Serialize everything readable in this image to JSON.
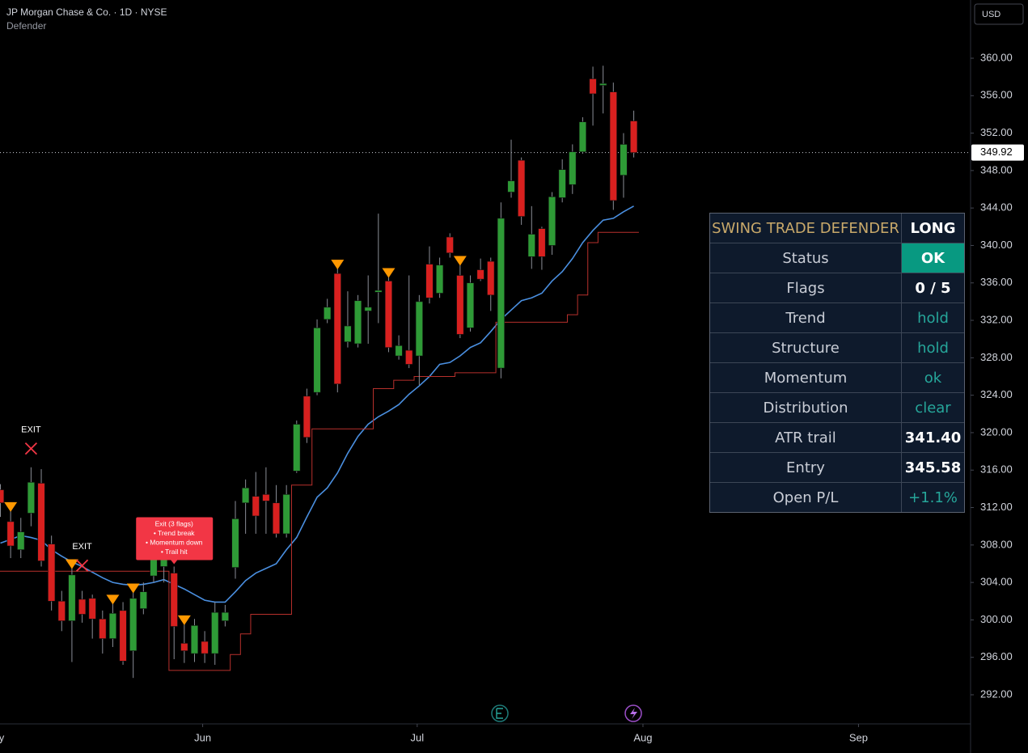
{
  "chart_data": {
    "type": "candlestick",
    "title": "JP Morgan Chase & Co. · 1D · NYSE",
    "subtitle": "Defender",
    "currency": "USD",
    "open": [
      313.9,
      310.5,
      307.5,
      311.4,
      314.6,
      308.1,
      302.0,
      299.9,
      302.2,
      302.3,
      300.1,
      298.0,
      301.0,
      296.7,
      301.2,
      304.7,
      305.7,
      305.0,
      297.5,
      296.4,
      297.7,
      296.4,
      299.9,
      305.6,
      312.5,
      313.2,
      313.4,
      312.5,
      309.2,
      315.9,
      323.9,
      324.3,
      332.1,
      337.0,
      329.7,
      329.5,
      333.0,
      335.0,
      336.2,
      328.2,
      328.8,
      328.2,
      338.0,
      334.9,
      340.9,
      336.8,
      331.2,
      337.4,
      338.3,
      326.9,
      345.7,
      349.1,
      338.8,
      341.8,
      340.0,
      345.1,
      346.5,
      350.0,
      357.8,
      357.1,
      356.4,
      347.5,
      353.3
    ],
    "high": [
      314.5,
      311.8,
      310.9,
      316.3,
      316.1,
      309.0,
      303.1,
      305.7,
      303.1,
      302.7,
      301.0,
      301.9,
      301.9,
      303.1,
      304.0,
      307.5,
      308.5,
      305.7,
      299.7,
      300.1,
      298.8,
      301.9,
      301.6,
      312.7,
      315.0,
      315.8,
      316.3,
      314.4,
      314.4,
      321.3,
      324.7,
      332.1,
      334.3,
      337.7,
      335.1,
      334.7,
      336.8,
      343.4,
      336.8,
      330.4,
      336.8,
      334.7,
      339.9,
      338.7,
      341.3,
      338.1,
      336.8,
      338.6,
      338.7,
      344.6,
      351.3,
      349.4,
      344.2,
      342.0,
      345.7,
      349.2,
      350.8,
      353.7,
      359.1,
      359.2,
      357.4,
      352.0,
      354.4
    ],
    "low": [
      311.0,
      306.6,
      306.6,
      310.0,
      305.7,
      301.0,
      298.8,
      295.5,
      299.7,
      298.0,
      296.4,
      297.1,
      295.2,
      293.8,
      300.6,
      304.0,
      304.0,
      295.8,
      295.4,
      295.5,
      295.4,
      295.2,
      299.3,
      304.4,
      309.2,
      309.2,
      309.2,
      308.8,
      308.8,
      315.7,
      318.9,
      324.0,
      331.7,
      324.3,
      329.1,
      329.1,
      329.5,
      331.7,
      328.6,
      327.8,
      326.9,
      325.1,
      333.8,
      334.4,
      338.7,
      330.1,
      330.8,
      336.2,
      333.0,
      325.8,
      345.1,
      342.2,
      337.5,
      337.4,
      339.0,
      344.6,
      345.5,
      349.8,
      352.8,
      354.1,
      343.8,
      345.1,
      349.4
    ],
    "close": [
      312.5,
      307.9,
      309.4,
      314.7,
      306.3,
      302.0,
      299.9,
      304.8,
      300.6,
      300.1,
      298.0,
      300.7,
      295.6,
      302.3,
      303.0,
      306.6,
      307.5,
      299.3,
      296.7,
      299.4,
      296.4,
      300.8,
      300.8,
      310.8,
      314.1,
      311.1,
      312.7,
      309.2,
      313.4,
      320.9,
      319.5,
      331.2,
      333.4,
      325.2,
      331.4,
      334.1,
      333.4,
      335.2,
      329.1,
      329.3,
      327.3,
      334.0,
      334.4,
      337.9,
      339.2,
      330.5,
      336.0,
      336.4,
      334.7,
      342.9,
      346.9,
      343.1,
      341.2,
      338.8,
      345.2,
      348.1,
      350.0,
      353.2,
      356.2,
      357.3,
      344.8,
      350.8,
      349.92
    ],
    "up_color": "#2e9a36",
    "down_color": "#d8201f",
    "overlays": [
      {
        "color": "#4a8fe0",
        "step": false,
        "values": [
          308.2,
          308.6,
          309.0,
          308.8,
          308.5,
          307.5,
          306.8,
          306.2,
          305.7,
          305.1,
          304.5,
          304.0,
          303.8,
          303.7,
          303.8,
          304.0,
          304.3,
          303.8,
          303.3,
          302.7,
          302.1,
          301.9,
          301.9,
          303.0,
          304.2,
          305.0,
          305.5,
          306.0,
          307.5,
          308.8,
          311.0,
          313.1,
          314.1,
          315.7,
          317.8,
          319.6,
          320.9,
          321.7,
          322.3,
          323.0,
          324.1,
          325.0,
          326.0,
          327.3,
          327.5,
          328.2,
          329.1,
          329.6,
          330.8,
          332.1,
          333.1,
          334.1,
          334.4,
          334.9,
          336.2,
          337.2,
          338.6,
          340.3,
          341.6,
          342.7,
          342.9,
          343.6,
          344.2
        ]
      },
      {
        "color": "#b7302c",
        "step": true,
        "values": [
          305.2,
          305.2,
          305.2,
          305.2,
          305.2,
          305.2,
          305.2,
          305.2,
          305.2,
          305.2,
          305.2,
          305.2,
          305.2,
          305.2,
          305.2,
          305.2,
          305.2,
          294.6,
          294.6,
          294.6,
          294.6,
          294.6,
          294.6,
          296.3,
          298.5,
          300.6,
          300.6,
          300.6,
          300.6,
          314.4,
          314.4,
          320.4,
          320.4,
          320.4,
          320.4,
          320.4,
          320.4,
          324.7,
          324.7,
          325.6,
          325.6,
          326.0,
          326.0,
          326.0,
          326.0,
          326.4,
          326.4,
          326.4,
          326.4,
          331.8,
          331.8,
          331.8,
          331.8,
          331.8,
          331.8,
          331.8,
          332.6,
          334.7,
          340.3,
          341.4,
          341.4,
          341.4,
          341.4
        ]
      }
    ],
    "flag_bars": [
      1,
      7,
      11,
      13,
      18,
      33,
      38,
      45
    ],
    "flag_color": "#ff9800",
    "exits": [
      {
        "bar": 3,
        "price": 318.3,
        "label": "EXIT"
      },
      {
        "bar": 8,
        "price": 305.8,
        "label": "EXIT"
      }
    ],
    "exit_note": {
      "bar": 17,
      "lines": [
        "Exit (3 flags)",
        "• Trend break",
        "• Momentum down",
        "• Trail hit"
      ]
    },
    "last_price": 349.92,
    "ylim": [
      288.89,
      366.22
    ],
    "yticks": [
      {
        "value": 292,
        "label": "292.00"
      },
      {
        "value": 296,
        "label": "296.00"
      },
      {
        "value": 300,
        "label": "300.00"
      },
      {
        "value": 304,
        "label": "304.00"
      },
      {
        "value": 308,
        "label": "308.00"
      },
      {
        "value": 312,
        "label": "312.00"
      },
      {
        "value": 316,
        "label": "316.00"
      },
      {
        "value": 320,
        "label": "320.00"
      },
      {
        "value": 324,
        "label": "324.00"
      },
      {
        "value": 328,
        "label": "328.00"
      },
      {
        "value": 332,
        "label": "332.00"
      },
      {
        "value": 336,
        "label": "336.00"
      },
      {
        "value": 340,
        "label": "340.00"
      },
      {
        "value": 344,
        "label": "344.00"
      },
      {
        "value": 348,
        "label": "348.00"
      },
      {
        "value": 352,
        "label": "352.00"
      },
      {
        "value": 356,
        "label": "356.00"
      },
      {
        "value": 360,
        "label": "360.00"
      }
    ],
    "xlim": [
      -0.04,
      94.97
    ],
    "xticks": [
      {
        "value": -0.6,
        "label": "May"
      },
      {
        "value": 19.8,
        "label": "Jun"
      },
      {
        "value": 40.8,
        "label": "Jul"
      },
      {
        "value": 62.9,
        "label": "Aug"
      },
      {
        "value": 84,
        "label": "Sep"
      }
    ],
    "grid": false
  },
  "panel": {
    "header": [
      "SWING TRADE DEFENDER",
      "LONG"
    ],
    "rows": [
      [
        "Status",
        "OK"
      ],
      [
        "Flags",
        "0 / 5"
      ],
      [
        "Trend",
        "hold"
      ],
      [
        "Structure",
        "hold"
      ],
      [
        "Momentum",
        "ok"
      ],
      [
        "Distribution",
        "clear"
      ],
      [
        "ATR trail",
        "341.40"
      ],
      [
        "Entry",
        "345.58"
      ],
      [
        "Open P/L",
        "+1.1%"
      ]
    ]
  }
}
